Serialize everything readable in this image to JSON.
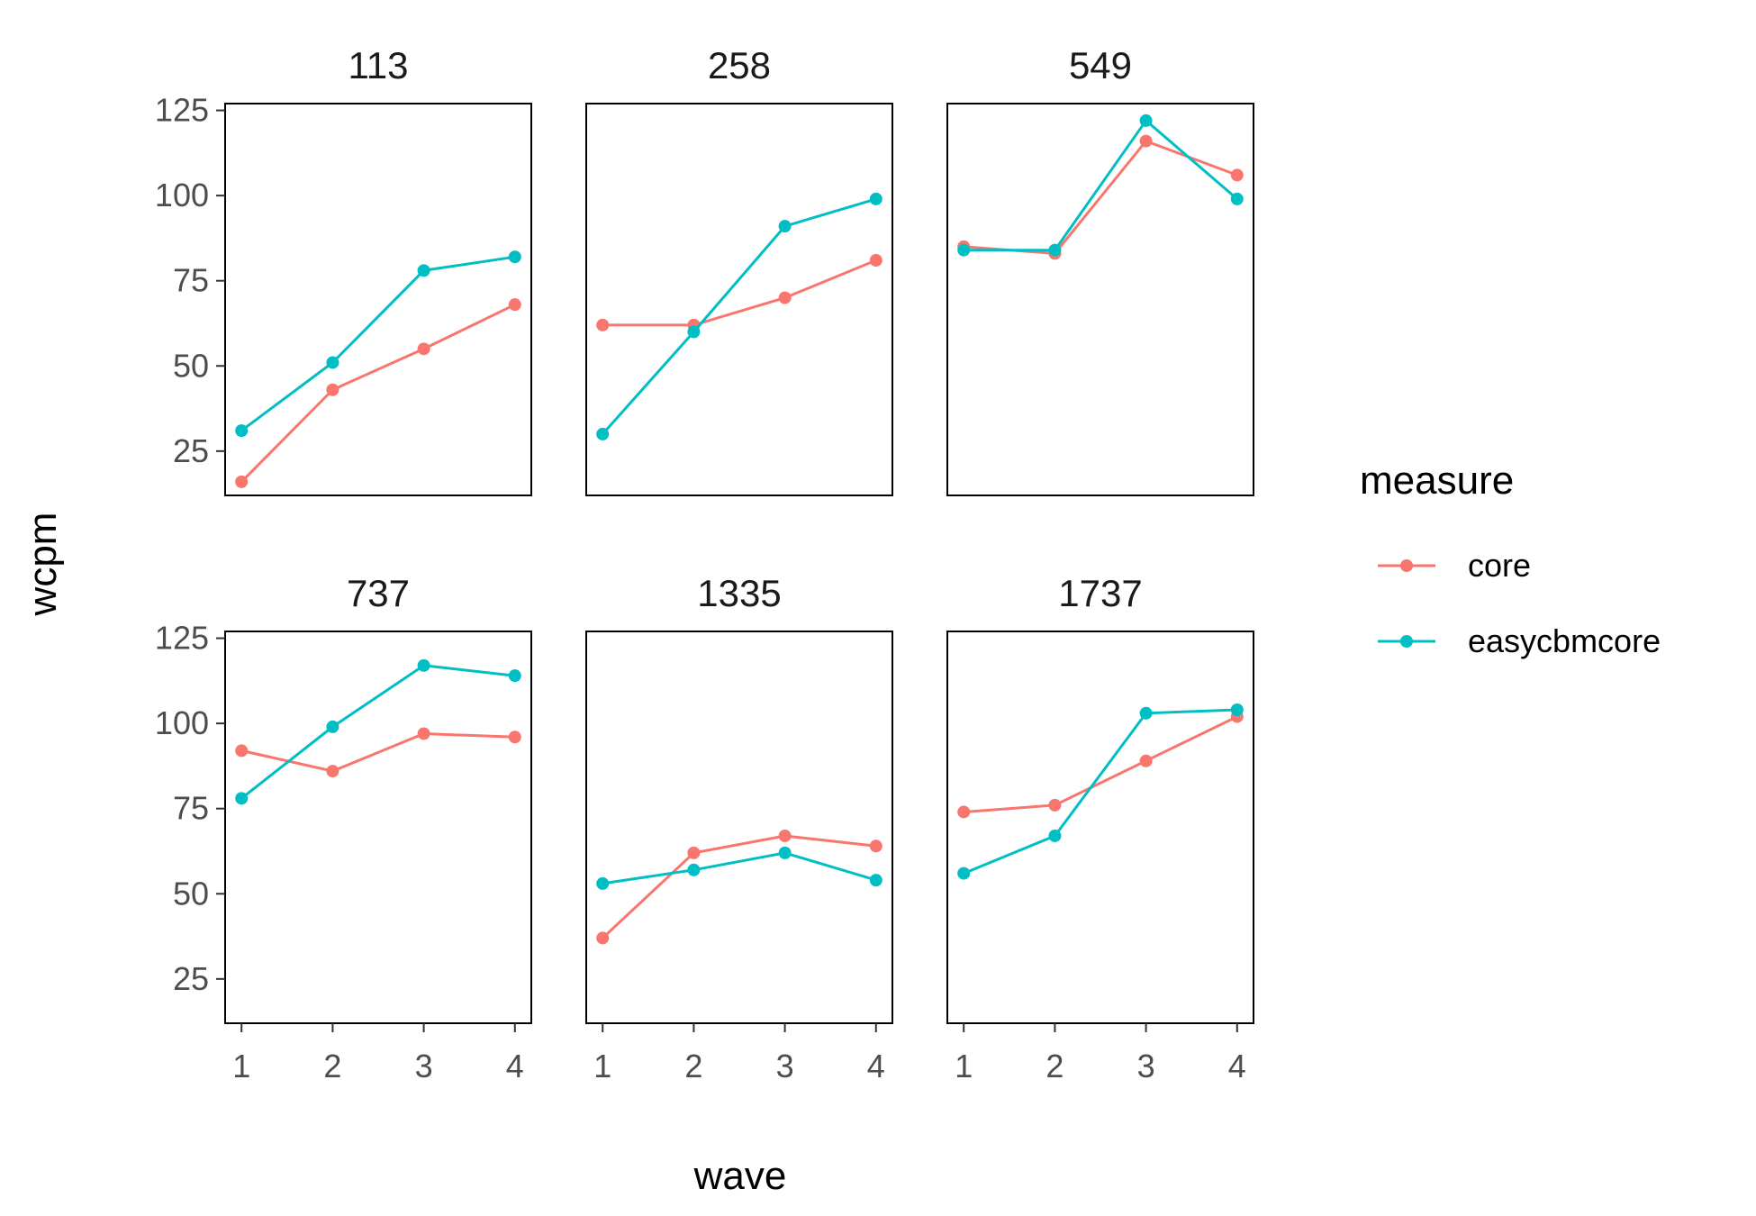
{
  "chart_data": {
    "type": "line",
    "xlabel": "wave",
    "ylabel": "wcpm",
    "x": [
      1,
      2,
      3,
      4
    ],
    "ylim": [
      12,
      127
    ],
    "yticks": [
      25,
      50,
      75,
      100,
      125
    ],
    "grid": false,
    "legend": {
      "title": "measure",
      "placement": "right",
      "entries": [
        {
          "label": "core",
          "color": "#F8766D"
        },
        {
          "label": "easycbmcore",
          "color": "#00BFC4"
        }
      ]
    },
    "panels": [
      {
        "title": "113",
        "series": [
          {
            "name": "core",
            "values": [
              16,
              43,
              55,
              68
            ]
          },
          {
            "name": "easycbmcore",
            "values": [
              31,
              51,
              78,
              82
            ]
          }
        ]
      },
      {
        "title": "258",
        "series": [
          {
            "name": "core",
            "values": [
              62,
              62,
              70,
              81
            ]
          },
          {
            "name": "easycbmcore",
            "values": [
              30,
              60,
              91,
              99
            ]
          }
        ]
      },
      {
        "title": "549",
        "series": [
          {
            "name": "core",
            "values": [
              85,
              83,
              116,
              106
            ]
          },
          {
            "name": "easycbmcore",
            "values": [
              84,
              84,
              122,
              99
            ]
          }
        ]
      },
      {
        "title": "737",
        "series": [
          {
            "name": "core",
            "values": [
              92,
              86,
              97,
              96
            ]
          },
          {
            "name": "easycbmcore",
            "values": [
              78,
              99,
              117,
              114
            ]
          }
        ]
      },
      {
        "title": "1335",
        "series": [
          {
            "name": "core",
            "values": [
              37,
              62,
              67,
              64
            ]
          },
          {
            "name": "easycbmcore",
            "values": [
              53,
              57,
              62,
              54
            ]
          }
        ]
      },
      {
        "title": "1737",
        "series": [
          {
            "name": "core",
            "values": [
              74,
              76,
              89,
              102
            ]
          },
          {
            "name": "easycbmcore",
            "values": [
              56,
              67,
              103,
              104
            ]
          }
        ]
      }
    ]
  }
}
